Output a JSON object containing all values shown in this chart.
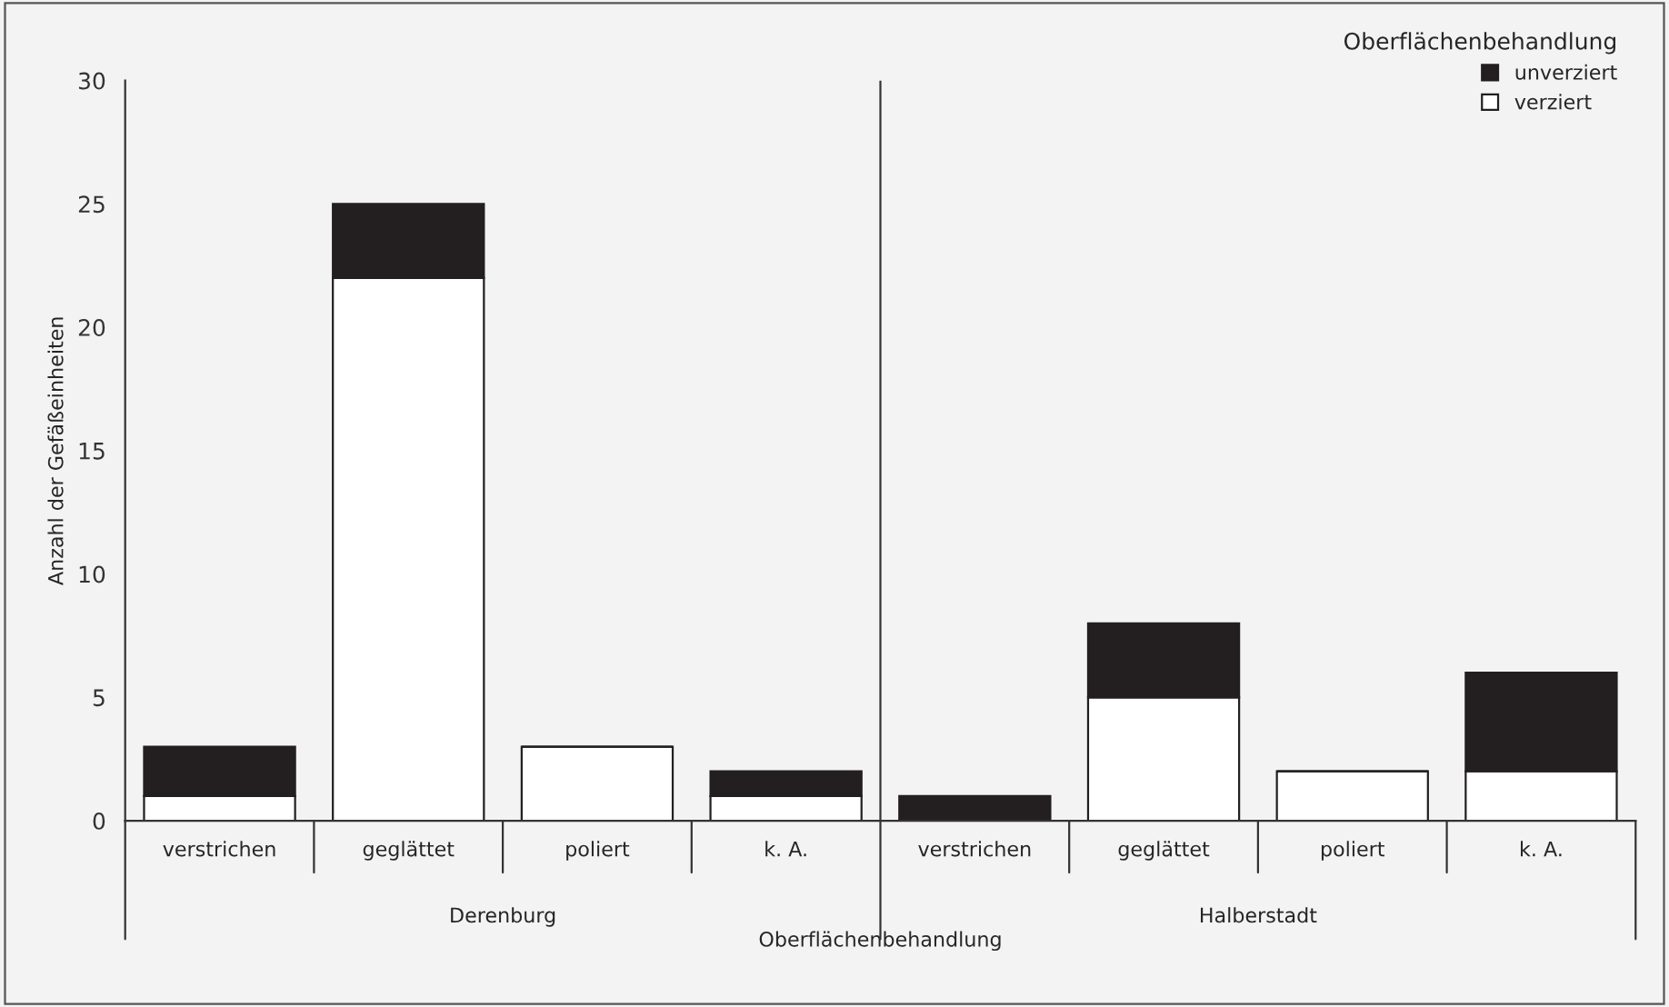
{
  "chart_data": {
    "type": "bar",
    "stacked": true,
    "xlabel": "Oberflächenbehandlung",
    "ylabel": "Anzahl der Gefäßeinheiten",
    "legend_title": "Oberflächenbehandlung",
    "legend": "top right",
    "categories": [
      "verstrichen",
      "geglättet",
      "poliert",
      "k. A.",
      "verstrichen",
      "geglättet",
      "poliert",
      "k. A."
    ],
    "series": [
      {
        "name": "verziert",
        "color": "#ffffff",
        "values": [
          1,
          22,
          3,
          1,
          0,
          5,
          2,
          2
        ]
      },
      {
        "name": "unverziert",
        "color": "#231f20",
        "values": [
          2,
          3,
          0,
          1,
          1,
          3,
          0,
          4
        ]
      }
    ],
    "ylim": [
      0,
      30
    ],
    "yticks": [
      0,
      5,
      10,
      15,
      20,
      25,
      30
    ],
    "grid": false,
    "annotations": [
      "Derenburg",
      "Halberstadt"
    ]
  }
}
